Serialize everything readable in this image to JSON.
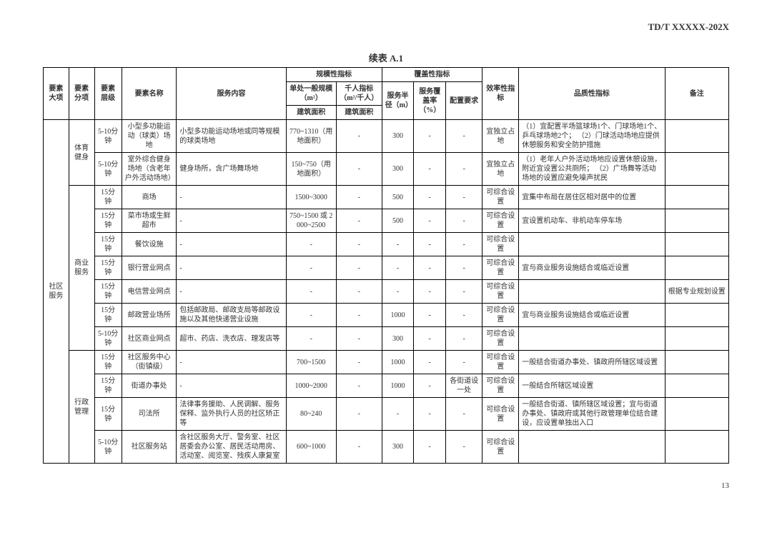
{
  "doc_code": "TD/T   XXXXX-202X",
  "table_title": "续表 A.1",
  "page_num": "13",
  "header": {
    "major": "要素大项",
    "sub": "要素分项",
    "level": "要素层级",
    "name": "要素名称",
    "content": "服务内容",
    "scale_group": "规模性指标",
    "scale": "单处一般规模（m²）",
    "thousand": "千人指标（m²/千人）",
    "build_area": "建筑面积",
    "build_area2": "建筑面积",
    "coverage_group": "覆盖性指标",
    "radius": "服务半径（m）",
    "cover_rate": "服务覆盖率（%）",
    "config": "配置要求",
    "eff": "效率性指标",
    "quality": "品质性指标",
    "note": "备注"
  },
  "majors": {
    "community": "社区服务"
  },
  "subs": {
    "sport": "体育健身",
    "commerce": "商业服务",
    "admin": "行政管理"
  },
  "rows": [
    {
      "level": "5-10分钟",
      "name": "小型多功能运动（球类）场地",
      "content": "小型多功能运动场地或同等规模的球类场地",
      "scale": "770~1310（用地面积）",
      "thousand": "-",
      "radius": "300",
      "cover": "-",
      "config": "-",
      "eff": "宜独立占地",
      "quality": "（1）宜配置半场篮球场1个、门球场地1个、乒乓球场地2个；\n（2）门球活动场地应提供休憩服务和安全防护措施",
      "note": ""
    },
    {
      "level": "5-10分钟",
      "name": "室外综合健身场地（含老年户外活动场地）",
      "content": "健身场所，含广场舞场地",
      "scale": "150~750（用地面积）",
      "thousand": "-",
      "radius": "300",
      "cover": "-",
      "config": "-",
      "eff": "宜独立占地",
      "quality": "（1）老年人户外活动场地应设置休憩设施，附近宜设置公共厕所；\n（2）广场舞等活动场地的设置应避免噪声扰民",
      "note": ""
    },
    {
      "level": "15分钟",
      "name": "商场",
      "content": "-",
      "scale": "1500~3000",
      "thousand": "-",
      "radius": "500",
      "cover": "-",
      "config": "-",
      "eff": "可综合设置",
      "quality": "宜集中布局在居住区相对居中的位置",
      "note": ""
    },
    {
      "level": "15分钟",
      "name": "菜市场或生鲜超市",
      "content": "-",
      "scale": "750~1500 或 2000~2500",
      "thousand": "-",
      "radius": "500",
      "cover": "-",
      "config": "-",
      "eff": "可综合设置",
      "quality": "宜设置机动车、非机动车停车场",
      "note": ""
    },
    {
      "level": "15分钟",
      "name": "餐饮设施",
      "content": "-",
      "scale": "-",
      "thousand": "-",
      "radius": "-",
      "cover": "-",
      "config": "-",
      "eff": "可综合设置",
      "quality": "",
      "note": ""
    },
    {
      "level": "15分钟",
      "name": "银行营业网点",
      "content": "-",
      "scale": "-",
      "thousand": "-",
      "radius": "-",
      "cover": "-",
      "config": "-",
      "eff": "可综合设置",
      "quality": "宜与商业服务设施结合或临近设置",
      "note": ""
    },
    {
      "level": "15分钟",
      "name": "电信营业网点",
      "content": "-",
      "scale": "-",
      "thousand": "-",
      "radius": "-",
      "cover": "-",
      "config": "-",
      "eff": "可综合设置",
      "quality": "",
      "note": "根据专业规划设置"
    },
    {
      "level": "15分钟",
      "name": "邮政营业场所",
      "content": "包括邮政局、邮政支局等邮政设施以及其他快递营业设施",
      "scale": "-",
      "thousand": "-",
      "radius": "1000",
      "cover": "-",
      "config": "-",
      "eff": "可综合设置",
      "quality": "宜与商业服务设施结合或临近设置",
      "note": ""
    },
    {
      "level": "5-10分钟",
      "name": "社区商业网点",
      "content": "超市、药店、洗衣店、理发店等",
      "scale": "-",
      "thousand": "-",
      "radius": "300",
      "cover": "-",
      "config": "-",
      "eff": "可综合设置",
      "quality": "",
      "note": ""
    },
    {
      "level": "15分钟",
      "name": "社区服务中心（街镇级）",
      "content": "-",
      "scale": "700~1500",
      "thousand": "-",
      "radius": "1000",
      "cover": "-",
      "config": "-",
      "eff": "可综合设置",
      "quality": "一般结合街道办事处、镇政府所辖区域设置",
      "note": ""
    },
    {
      "level": "15分钟",
      "name": "街道办事处",
      "content": "-",
      "scale": "1000~2000",
      "thousand": "-",
      "radius": "1000",
      "cover": "-",
      "config": "各街道设一处",
      "eff": "可综合设置",
      "quality": "一般结合所辖区域设置",
      "note": ""
    },
    {
      "level": "15分钟",
      "name": "司法所",
      "content": "法律事务援助、人民调解、服务保释、监外执行人员的社区矫正等",
      "scale": "80~240",
      "thousand": "-",
      "radius": "-",
      "cover": "-",
      "config": "-",
      "eff": "可综合设置",
      "quality": "一般结合街道、镇所辖区域设置；宜与街道办事处、镇政府或其他行政管理单位结合建设，应设置单独出入口",
      "note": ""
    },
    {
      "level": "5-10分钟",
      "name": "社区服务站",
      "content": "含社区服务大厅、警务室、社区居委会办公室、居民活动用房、活动室、阅览室、残疾人康复室",
      "scale": "600~1000",
      "thousand": "-",
      "radius": "300",
      "cover": "-",
      "config": "-",
      "eff": "可综合设置",
      "quality": "",
      "note": ""
    }
  ]
}
